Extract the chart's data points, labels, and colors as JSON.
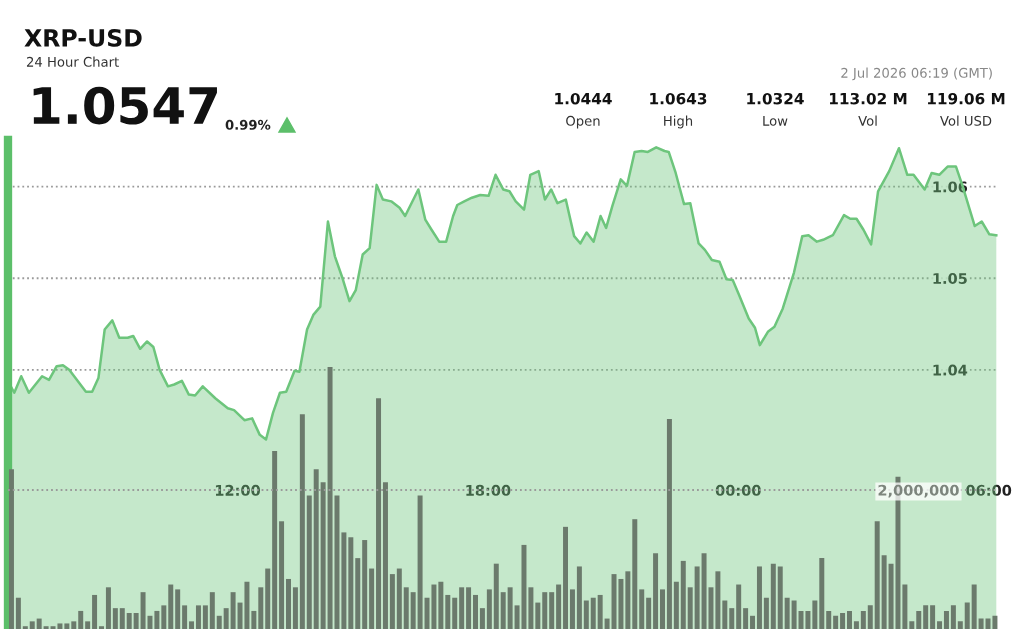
{
  "chart_data": [
    {
      "type": "area",
      "title": "XRP-USD",
      "subtitle": "24 Hour Chart",
      "annotations": [
        "1.0547",
        "0.99%",
        "1.0444",
        "Open",
        "1.0643",
        "High",
        "1.0324",
        "Low",
        "113.02 M",
        "Vol",
        "119.06 M",
        "Vol USD",
        "2 Jul 2026 06:19 (GMT)"
      ],
      "x": [
        "2026-07-01T06:34",
        "2026-07-01T06:39",
        "2026-07-01T06:49",
        "2026-07-01T07:00",
        "2026-07-01T07:19",
        "2026-07-01T07:29",
        "2026-07-01T07:40",
        "2026-07-01T07:49",
        "2026-07-01T07:58",
        "2026-07-01T08:22",
        "2026-07-01T08:31",
        "2026-07-01T08:40",
        "2026-07-01T08:49",
        "2026-07-01T09:00",
        "2026-07-01T09:10",
        "2026-07-01T09:22",
        "2026-07-01T09:30",
        "2026-07-01T09:40",
        "2026-07-01T09:50",
        "2026-07-01T09:59",
        "2026-07-01T10:08",
        "2026-07-01T10:20",
        "2026-07-01T10:29",
        "2026-07-01T10:40",
        "2026-07-01T10:50",
        "2026-07-01T10:59",
        "2026-07-01T11:10",
        "2026-07-01T11:28",
        "2026-07-01T11:46",
        "2026-07-01T11:55",
        "2026-07-01T12:10",
        "2026-07-01T12:21",
        "2026-07-01T12:32",
        "2026-07-01T12:41",
        "2026-07-01T12:51",
        "2026-07-01T13:01",
        "2026-07-01T13:10",
        "2026-07-01T13:22",
        "2026-07-01T13:29",
        "2026-07-01T13:40",
        "2026-07-01T13:49",
        "2026-07-01T13:59",
        "2026-07-01T14:10",
        "2026-07-01T14:20",
        "2026-07-01T14:31",
        "2026-07-01T14:41",
        "2026-07-01T14:50",
        "2026-07-01T15:00",
        "2026-07-01T15:10",
        "2026-07-01T15:20",
        "2026-07-01T15:29",
        "2026-07-01T15:41",
        "2026-07-01T15:53",
        "2026-07-01T16:01",
        "2026-07-01T16:20",
        "2026-07-01T16:30",
        "2026-07-01T16:39",
        "2026-07-01T16:50",
        "2026-07-01T17:00",
        "2026-07-01T17:10",
        "2026-07-01T17:16",
        "2026-07-01T17:26",
        "2026-07-01T17:37",
        "2026-07-01T17:49",
        "2026-07-01T18:01",
        "2026-07-01T18:11",
        "2026-07-01T18:22",
        "2026-07-01T18:31",
        "2026-07-01T18:40",
        "2026-07-01T18:52",
        "2026-07-01T19:01",
        "2026-07-01T19:13",
        "2026-07-01T19:22",
        "2026-07-01T19:31",
        "2026-07-01T19:40",
        "2026-07-01T19:52",
        "2026-07-01T20:04",
        "2026-07-01T20:13",
        "2026-07-01T20:22",
        "2026-07-01T20:32",
        "2026-07-01T20:42",
        "2026-07-01T20:50",
        "2026-07-01T20:59",
        "2026-07-01T21:11",
        "2026-07-01T21:20",
        "2026-07-01T21:31",
        "2026-07-01T21:41",
        "2026-07-01T21:50",
        "2026-07-01T22:02",
        "2026-07-01T22:14",
        "2026-07-01T22:20",
        "2026-07-01T22:30",
        "2026-07-01T22:42",
        "2026-07-01T22:51",
        "2026-07-01T23:03",
        "2026-07-01T23:12",
        "2026-07-01T23:22",
        "2026-07-01T23:33",
        "2026-07-01T23:43",
        "2026-07-01T23:52",
        "2026-07-02T00:01",
        "2026-07-02T00:15",
        "2026-07-02T00:24",
        "2026-07-02T00:31",
        "2026-07-02T00:43",
        "2026-07-02T00:52",
        "2026-07-02T01:04",
        "2026-07-02T01:20",
        "2026-07-02T01:32",
        "2026-07-02T01:41",
        "2026-07-02T01:53",
        "2026-07-02T02:02",
        "2026-07-02T02:16",
        "2026-07-02T02:32",
        "2026-07-02T02:41",
        "2026-07-02T02:50",
        "2026-07-02T03:00",
        "2026-07-02T03:11",
        "2026-07-02T03:21",
        "2026-07-02T03:37",
        "2026-07-02T03:51",
        "2026-07-02T04:03",
        "2026-07-02T04:12",
        "2026-07-02T04:28",
        "2026-07-02T04:38",
        "2026-07-02T04:49",
        "2026-07-02T05:01",
        "2026-07-02T05:13",
        "2026-07-02T05:22",
        "2026-07-02T05:40",
        "2026-07-02T05:50",
        "2026-07-02T06:01",
        "2026-07-02T06:11"
      ],
      "series": [
        {
          "color": "#6dc57c",
          "values": [
            1.0382,
            1.0375,
            1.0393,
            1.0375,
            1.0393,
            1.0389,
            1.0404,
            1.0405,
            1.04,
            1.0376,
            1.0376,
            1.0391,
            1.0444,
            1.0454,
            1.0435,
            1.0435,
            1.0437,
            1.0423,
            1.0431,
            1.0425,
            1.04,
            1.0382,
            1.0384,
            1.0388,
            1.0373,
            1.0372,
            1.0382,
            1.0369,
            1.0358,
            1.0356,
            1.0345,
            1.0347,
            1.0329,
            1.0324,
            1.0353,
            1.0375,
            1.0376,
            1.0399,
            1.0398,
            1.0444,
            1.046,
            1.0469,
            1.0562,
            1.0524,
            1.05,
            1.0475,
            1.0487,
            1.0526,
            1.0533,
            1.0602,
            1.0586,
            1.0584,
            1.0577,
            1.0568,
            1.0597,
            1.0564,
            1.0553,
            1.054,
            1.054,
            1.0568,
            1.058,
            1.0584,
            1.0588,
            1.0591,
            1.059,
            1.0613,
            1.0597,
            1.0595,
            1.0584,
            1.0575,
            1.0613,
            1.0617,
            1.0586,
            1.0597,
            1.0582,
            1.0586,
            1.0546,
            1.0538,
            1.055,
            1.054,
            1.0568,
            1.0555,
            1.0579,
            1.0608,
            1.0601,
            1.0638,
            1.0639,
            1.0638,
            1.0643,
            1.0639,
            1.0638,
            1.0615,
            1.0581,
            1.0582,
            1.0538,
            1.0531,
            1.052,
            1.0518,
            1.0499,
            1.0498,
            1.0482,
            1.0456,
            1.0446,
            1.0427,
            1.0442,
            1.0447,
            1.0467,
            1.0506,
            1.0546,
            1.0547,
            1.054,
            1.0542,
            1.0547,
            1.0569,
            1.0565,
            1.0565,
            1.0553,
            1.0537,
            1.0595,
            1.0617,
            1.0642,
            1.0613,
            1.0613,
            1.0597,
            1.0615,
            1.0613,
            1.0622,
            1.0622,
            1.0602,
            1.0557,
            1.0562,
            1.0548,
            1.0547
          ]
        }
      ],
      "xlim": [
        "2026-07-01T06:30",
        "2026-07-02T06:14"
      ],
      "xticks": [
        {
          "value": "2026-07-01T12:00",
          "label": "12:00"
        },
        {
          "value": "2026-07-01T18:00",
          "label": "18:00"
        },
        {
          "value": "2026-07-02T00:00",
          "label": "00:00"
        },
        {
          "value": "2026-07-02T06:00",
          "label": "06:00"
        }
      ],
      "ylim": [
        1.0117,
        1.0651
      ],
      "yticks": [
        1.04,
        1.05,
        1.06
      ],
      "grid": "y"
    },
    {
      "type": "bar",
      "color": "#6b7a6c",
      "ylim": [
        0,
        3770000
      ],
      "yticks": [
        {
          "value": 2000000,
          "label": "2,000,000"
        }
      ],
      "grid": "y",
      "categories": [
        null,
        null,
        null,
        null,
        null,
        null,
        null,
        null,
        null,
        null,
        null,
        null,
        null,
        null,
        null,
        null,
        null,
        null,
        null,
        null,
        null,
        null,
        null,
        null,
        null,
        null,
        null,
        null,
        null,
        null,
        null,
        null,
        null,
        null,
        null,
        null,
        null,
        null,
        null,
        null,
        null,
        null,
        null,
        null,
        null,
        null,
        null,
        null,
        null,
        null,
        null,
        null,
        null,
        null,
        null,
        null,
        null,
        null,
        null,
        null,
        null,
        null,
        null,
        null,
        null,
        null,
        null,
        null,
        null,
        null,
        null,
        null,
        null,
        null,
        null,
        null,
        null,
        null,
        null,
        null,
        null,
        null,
        null,
        null,
        null,
        null,
        null,
        null,
        null,
        null,
        null,
        null,
        null,
        null,
        null,
        null,
        null,
        null,
        null,
        null,
        null,
        null,
        null,
        null,
        null,
        null,
        null,
        null,
        null,
        null,
        null,
        null,
        null,
        null,
        null,
        null,
        null,
        null,
        null,
        null,
        null,
        null,
        null,
        null,
        null,
        null,
        null,
        null,
        null,
        null,
        null,
        null,
        null,
        null,
        null,
        null,
        null,
        null,
        null,
        null,
        null,
        null,
        null
      ],
      "values": [
        2300000,
        450000,
        40000,
        110000,
        150000,
        40000,
        40000,
        80000,
        80000,
        110000,
        260000,
        110000,
        490000,
        40000,
        600000,
        300000,
        300000,
        230000,
        230000,
        530000,
        190000,
        260000,
        340000,
        640000,
        570000,
        340000,
        110000,
        340000,
        340000,
        530000,
        190000,
        300000,
        530000,
        380000,
        680000,
        260000,
        600000,
        870000,
        2560000,
        1550000,
        720000,
        600000,
        3090000,
        1920000,
        2300000,
        2110000,
        3770000,
        1920000,
        1390000,
        1320000,
        1020000,
        1280000,
        870000,
        3320000,
        2110000,
        790000,
        870000,
        600000,
        530000,
        1920000,
        450000,
        640000,
        680000,
        490000,
        450000,
        600000,
        600000,
        490000,
        300000,
        570000,
        940000,
        530000,
        600000,
        340000,
        1210000,
        600000,
        380000,
        530000,
        530000,
        640000,
        1470000,
        570000,
        900000,
        410000,
        450000,
        490000,
        150000,
        790000,
        720000,
        830000,
        1580000,
        570000,
        450000,
        1090000,
        570000,
        3020000,
        680000,
        980000,
        600000,
        900000,
        1090000,
        600000,
        830000,
        410000,
        300000,
        640000,
        300000,
        190000,
        900000,
        450000,
        940000,
        900000,
        450000,
        410000,
        260000,
        260000,
        410000,
        1020000,
        260000,
        190000,
        230000,
        260000,
        110000,
        260000,
        340000,
        1550000,
        1060000,
        940000,
        2190000,
        640000,
        110000,
        260000,
        340000,
        340000,
        110000,
        260000,
        340000,
        110000,
        380000,
        640000,
        150000,
        150000,
        190000
      ]
    }
  ]
}
